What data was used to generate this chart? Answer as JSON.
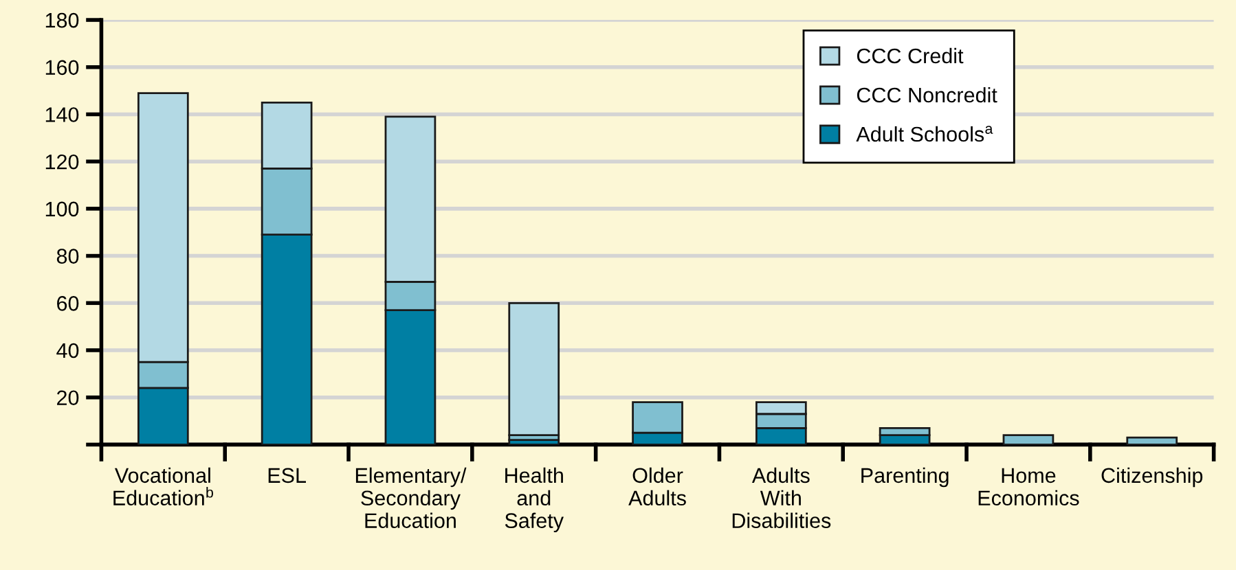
{
  "chart_data": {
    "type": "bar",
    "stacked": true,
    "categories": [
      "Vocational\nEducation$^{b}$",
      "ESL",
      "Elementary/\nSecondary\nEducation",
      "Health\nand\nSafety",
      "Older\nAdults",
      "Adults\nWith\nDisabilities",
      "Parenting",
      "Home\nEconomics",
      "Citizenship"
    ],
    "series": [
      {
        "name": "Adult Schools$^{a}$",
        "color": "#007fa3",
        "values": [
          24,
          89,
          57,
          2,
          5,
          7,
          4,
          0,
          0
        ]
      },
      {
        "name": "CCC Noncredit",
        "color": "#80bfd0",
        "values": [
          11,
          28,
          12,
          2,
          13,
          6,
          3,
          4,
          3
        ]
      },
      {
        "name": "CCC Credit",
        "color": "#b3d9e4",
        "values": [
          114,
          28,
          70,
          56,
          0,
          5,
          0,
          0,
          0
        ]
      }
    ],
    "ylim": [
      0,
      180
    ],
    "yticks": [
      {
        "value": 0,
        "label": null
      },
      20,
      40,
      60,
      80,
      100,
      120,
      140,
      160,
      180
    ],
    "grid": "y",
    "legend": "top right"
  }
}
